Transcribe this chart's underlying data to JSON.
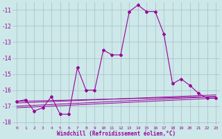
{
  "xlabel": "Windchill (Refroidissement éolien,°C)",
  "background_color": "#cce8e8",
  "grid_color": "#aabbcc",
  "line_color": "#990099",
  "xlim": [
    -0.5,
    23.5
  ],
  "ylim": [
    -18.2,
    -10.5
  ],
  "yticks": [
    -18,
    -17,
    -16,
    -15,
    -14,
    -13,
    -12,
    -11
  ],
  "xticks": [
    0,
    1,
    2,
    3,
    4,
    5,
    6,
    7,
    8,
    9,
    10,
    11,
    12,
    13,
    14,
    15,
    16,
    17,
    18,
    19,
    20,
    21,
    22,
    23
  ],
  "series": [
    [
      0,
      -16.7
    ],
    [
      1,
      -16.6
    ],
    [
      2,
      -17.3
    ],
    [
      3,
      -17.1
    ],
    [
      4,
      -16.4
    ],
    [
      5,
      -17.5
    ],
    [
      6,
      -17.5
    ],
    [
      7,
      -14.6
    ],
    [
      8,
      -16.0
    ],
    [
      9,
      -16.0
    ],
    [
      10,
      -13.5
    ],
    [
      11,
      -13.8
    ],
    [
      12,
      -13.8
    ],
    [
      13,
      -11.1
    ],
    [
      14,
      -10.7
    ],
    [
      15,
      -11.1
    ],
    [
      16,
      -11.1
    ],
    [
      17,
      -12.5
    ],
    [
      18,
      -15.6
    ],
    [
      19,
      -15.3
    ],
    [
      20,
      -15.7
    ],
    [
      21,
      -16.2
    ],
    [
      22,
      -16.5
    ],
    [
      23,
      -16.5
    ]
  ],
  "flat_lines": [
    [
      [
        0,
        -16.7
      ],
      [
        23,
        -16.4
      ]
    ],
    [
      [
        0,
        -16.8
      ],
      [
        23,
        -16.3
      ]
    ],
    [
      [
        0,
        -17.0
      ],
      [
        23,
        -16.4
      ]
    ],
    [
      [
        0,
        -17.1
      ],
      [
        23,
        -16.5
      ]
    ]
  ]
}
